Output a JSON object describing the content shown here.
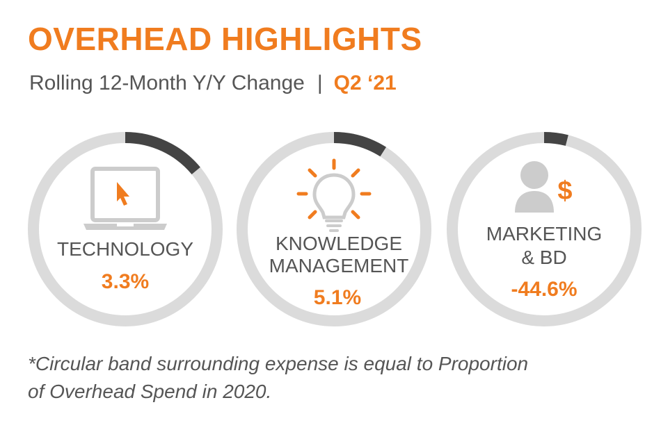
{
  "title": "OVERHEAD HIGHLIGHTS",
  "subtitle": {
    "text": "Rolling 12-Month Y/Y Change",
    "separator": "|",
    "period": "Q2 ‘21"
  },
  "colors": {
    "accent": "#F07C1F",
    "ring": "#DBDBDB",
    "band": "#444444",
    "text": "#555555",
    "icon_gray": "#CCCCCC"
  },
  "chart_data": {
    "type": "donut",
    "title": "OVERHEAD HIGHLIGHTS",
    "subtitle": "Rolling 12-Month Y/Y Change | Q2 ‘21",
    "categories": [
      "TECHNOLOGY",
      "KNOWLEDGE MANAGEMENT",
      "MARKETING & BD"
    ],
    "items": [
      {
        "label_lines": [
          "TECHNOLOGY"
        ],
        "yoy_change_label": "3.3%",
        "yoy_change": 3.3,
        "proportion_2020": 0.14,
        "icon": "laptop-cursor-icon"
      },
      {
        "label_lines": [
          "KNOWLEDGE",
          "MANAGEMENT"
        ],
        "yoy_change_label": "5.1%",
        "yoy_change": 5.1,
        "proportion_2020": 0.09,
        "icon": "lightbulb-icon"
      },
      {
        "label_lines": [
          "MARKETING",
          "& BD"
        ],
        "yoy_change_label": "-44.6%",
        "yoy_change": -44.6,
        "proportion_2020": 0.04,
        "icon": "person-dollar-icon"
      }
    ]
  },
  "footnote": {
    "line1": "*Circular band surrounding expense is equal to Proportion",
    "line2": "of Overhead Spend in 2020."
  }
}
